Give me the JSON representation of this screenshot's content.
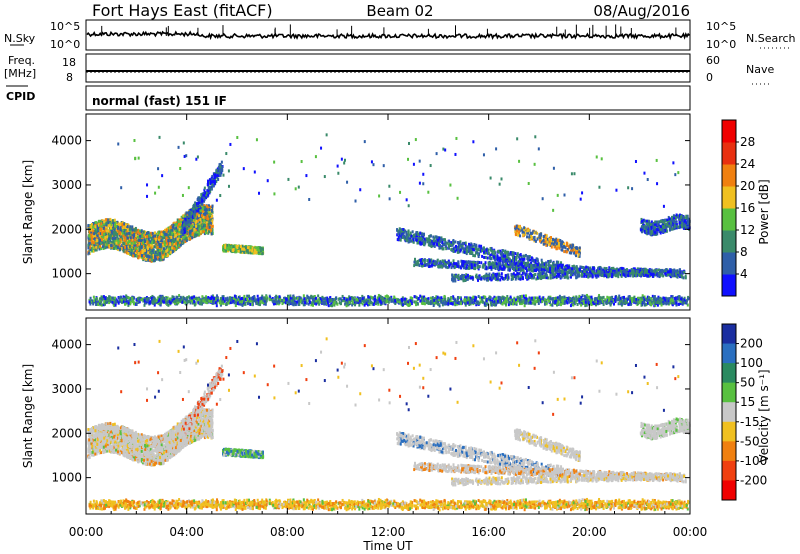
{
  "header": {
    "title": "Fort Hays East (fitACF)",
    "beam": "Beam 02",
    "date": "08/Aug/2016"
  },
  "top_panels": {
    "nsky_label": "N.Sky",
    "nsearch_label": "N.Search",
    "noise_ticks": [
      "10^5",
      "10^0"
    ],
    "freq_label": "Freq.",
    "freq_unit": "[MHz]",
    "freq_ticks": [
      "18",
      "8"
    ],
    "nave_label": "Nave",
    "nave_ticks": [
      "60",
      "0"
    ],
    "cpid_label": "CPID",
    "cpid_text": "normal (fast) 151 IF"
  },
  "chart_data": [
    {
      "type": "heatmap",
      "panel": "power",
      "title": "",
      "xlabel": "",
      "ylabel": "Slant Range [km]",
      "x_ticks": [
        "00:00",
        "04:00",
        "08:00",
        "12:00",
        "16:00",
        "20:00",
        "00:00"
      ],
      "y_ticks": [
        1000,
        2000,
        3000,
        4000
      ],
      "xlim_hours": [
        0,
        24
      ],
      "ylim_km": [
        180,
        4600
      ],
      "colorbar": {
        "label": "Power [dB]",
        "ticks": [
          "4",
          "8",
          "12",
          "16",
          "20",
          "24",
          "28"
        ],
        "colors": [
          "#1010ff",
          "#2f5fa8",
          "#3a8a6a",
          "#58c040",
          "#f0c020",
          "#f08010",
          "#e83010",
          "#f00000"
        ]
      }
    },
    {
      "type": "heatmap",
      "panel": "velocity",
      "title": "",
      "xlabel": "Time UT",
      "ylabel": "Slant Range [km]",
      "x_ticks": [
        "00:00",
        "04:00",
        "08:00",
        "12:00",
        "16:00",
        "20:00",
        "00:00"
      ],
      "y_ticks": [
        1000,
        2000,
        3000,
        4000
      ],
      "xlim_hours": [
        0,
        24
      ],
      "ylim_km": [
        180,
        4600
      ],
      "colorbar": {
        "label": "Velocity [m s⁻¹]",
        "ticks": [
          "200",
          "100",
          "50",
          "15",
          "-15",
          "-50",
          "-100",
          "-200"
        ],
        "colors": [
          "#1a2ea0",
          "#2a6fc0",
          "#2a8a60",
          "#58c040",
          "#c8c8c8",
          "#f0c020",
          "#f08010",
          "#f04010",
          "#f00000"
        ]
      }
    }
  ]
}
